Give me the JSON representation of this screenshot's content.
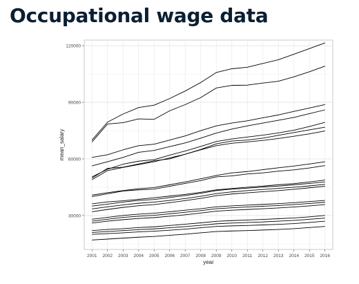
{
  "slide": {
    "title": "Occupational wage data"
  },
  "chart_data": {
    "type": "line",
    "xlabel": "year",
    "ylabel": "mean_salary",
    "x": [
      2001,
      2002,
      2003,
      2004,
      2005,
      2006,
      2007,
      2008,
      2009,
      2010,
      2011,
      2012,
      2013,
      2014,
      2015,
      2016
    ],
    "x_tick_labels": [
      "2001",
      "2002",
      "2003",
      "2004",
      "2005",
      "2006",
      "2007",
      "2008",
      "2009",
      "2010",
      "2011",
      "2012",
      "2013",
      "2014",
      "2015",
      "2016"
    ],
    "ylim": [
      12000,
      123000
    ],
    "y_ticks": [
      30000,
      60000,
      90000,
      120000
    ],
    "y_tick_labels": [
      "30000",
      "60000",
      "90000",
      "120000"
    ],
    "grid": true,
    "series": [
      {
        "values": [
          70000,
          79500,
          83800,
          87200,
          88500,
          92000,
          96000,
          100500,
          105800,
          107800,
          108600,
          110600,
          112600,
          115500,
          118500,
          121500
        ]
      },
      {
        "values": [
          69000,
          78500,
          79200,
          81200,
          81000,
          85500,
          88800,
          92500,
          97600,
          99000,
          99100,
          100200,
          101200,
          103500,
          106200,
          109200
        ]
      },
      {
        "values": [
          60800,
          62200,
          64800,
          67000,
          67800,
          70000,
          72200,
          75000,
          77500,
          79000,
          80200,
          81800,
          83300,
          85200,
          87000,
          88800
        ]
      },
      {
        "values": [
          56300,
          58500,
          60800,
          63500,
          64500,
          66500,
          68500,
          71000,
          73700,
          75800,
          77500,
          79000,
          80500,
          82000,
          84000,
          86000
        ]
      },
      {
        "values": [
          50500,
          54500,
          57200,
          58800,
          59600,
          62000,
          64200,
          66600,
          69200,
          70600,
          71600,
          72600,
          73800,
          75200,
          77200,
          79400
        ]
      },
      {
        "values": [
          49800,
          55000,
          55600,
          57300,
          59000,
          60000,
          62500,
          65000,
          68000,
          69500,
          70000,
          71000,
          72500,
          74000,
          75400,
          76800
        ]
      },
      {
        "values": [
          49000,
          53800,
          55500,
          57000,
          58500,
          60500,
          62500,
          64800,
          67000,
          68300,
          69000,
          69800,
          70800,
          72000,
          73300,
          74800
        ]
      },
      {
        "values": [
          40800,
          42100,
          43200,
          44200,
          44800,
          46300,
          47800,
          49500,
          51200,
          52600,
          53300,
          54300,
          55300,
          56200,
          57300,
          58500
        ]
      },
      {
        "values": [
          40000,
          41500,
          43000,
          43600,
          44000,
          45500,
          47000,
          48500,
          50500,
          51000,
          52000,
          52600,
          53500,
          54200,
          55200,
          56500
        ]
      },
      {
        "values": [
          36200,
          37200,
          37800,
          38600,
          39400,
          40300,
          41200,
          42300,
          43600,
          44300,
          45000,
          45600,
          46300,
          46900,
          47800,
          48800
        ]
      },
      {
        "values": [
          35000,
          36000,
          37100,
          38000,
          38500,
          39500,
          40600,
          41800,
          43200,
          44000,
          44500,
          45100,
          45600,
          46300,
          47000,
          47800
        ]
      },
      {
        "values": [
          33500,
          34600,
          35600,
          36500,
          37100,
          38000,
          39000,
          40200,
          41600,
          42500,
          43200,
          43800,
          44400,
          45000,
          45700,
          46500
        ]
      },
      {
        "values": [
          32000,
          33200,
          34300,
          35200,
          35800,
          36800,
          37900,
          39100,
          40500,
          41400,
          42000,
          42600,
          43200,
          43900,
          44700,
          45500
        ]
      },
      {
        "values": [
          28000,
          29000,
          30000,
          30700,
          31200,
          32000,
          32800,
          33600,
          34600,
          35100,
          35500,
          35900,
          36300,
          36800,
          37400,
          38000
        ]
      },
      {
        "values": [
          27000,
          28000,
          29000,
          29600,
          30100,
          30900,
          31700,
          32600,
          33600,
          34100,
          34500,
          34900,
          35300,
          35800,
          36400,
          37000
        ]
      },
      {
        "values": [
          26000,
          27000,
          27800,
          28400,
          28900,
          29600,
          30400,
          31300,
          32300,
          32800,
          33200,
          33600,
          34000,
          34500,
          35100,
          35800
        ]
      },
      {
        "values": [
          22000,
          22600,
          23000,
          23600,
          24000,
          24700,
          25400,
          26100,
          26900,
          27300,
          27600,
          27900,
          28300,
          28700,
          29300,
          30000
        ]
      },
      {
        "values": [
          21000,
          21500,
          22000,
          22500,
          22900,
          23500,
          24100,
          24800,
          25600,
          26000,
          26300,
          26600,
          27000,
          27400,
          28000,
          28600
        ]
      },
      {
        "values": [
          20000,
          20400,
          20800,
          21300,
          21700,
          22200,
          22800,
          23500,
          24200,
          24500,
          24700,
          25000,
          25300,
          25700,
          26300,
          27000
        ]
      },
      {
        "values": [
          17000,
          17500,
          18000,
          18500,
          18900,
          19500,
          20100,
          20800,
          21500,
          21800,
          22000,
          22300,
          22600,
          23000,
          23600,
          24200
        ]
      }
    ]
  }
}
